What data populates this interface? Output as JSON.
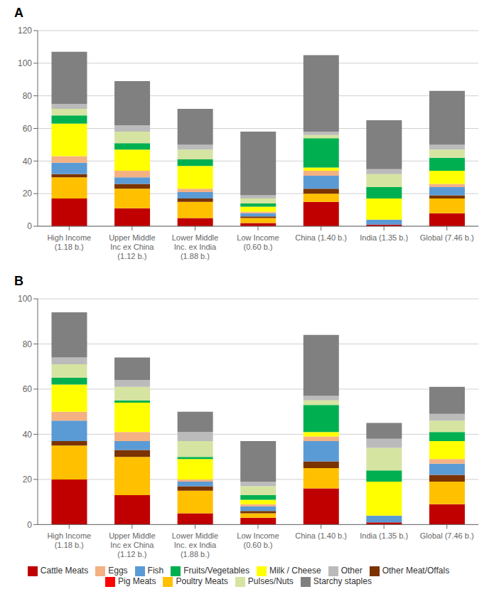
{
  "chart_data": [
    {
      "type": "bar",
      "title": "A",
      "categories": [
        "High Income\n(1.18 b.)",
        "Upper Middle\nInc ex China\n(1.12 b.)",
        "Lower Middle\nInc. ex India\n(1.88 b.)",
        "Low Income\n(0.60 b.)",
        "China (1.40 b.)",
        "India (1.35 b.)",
        "Global (7.46 b.)"
      ],
      "series": [
        {
          "name": "Cattle Meats",
          "color": "#C00000",
          "values": [
            17,
            11,
            5,
            2,
            15,
            1,
            8
          ]
        },
        {
          "name": "Pig Meats",
          "color": "#FF0000",
          "values": [
            0,
            0,
            0,
            0,
            0,
            0,
            0
          ]
        },
        {
          "name": "Poultry Meats",
          "color": "#FFC000",
          "values": [
            13,
            12,
            10,
            3,
            5,
            0,
            9
          ]
        },
        {
          "name": "Other Meat/Offals",
          "color": "#7B3300",
          "values": [
            2,
            3,
            2,
            1,
            3,
            0,
            2
          ]
        },
        {
          "name": "Fish",
          "color": "#5B9BD5",
          "values": [
            7,
            4,
            4,
            2,
            8,
            3,
            5
          ]
        },
        {
          "name": "Eggs",
          "color": "#F4B183",
          "values": [
            4,
            4,
            2,
            1,
            3,
            0,
            2
          ]
        },
        {
          "name": "Milk / Cheese",
          "color": "#FFFF00",
          "values": [
            20,
            13,
            14,
            3,
            2,
            13,
            8
          ]
        },
        {
          "name": "Fruits/Vegetables",
          "color": "#00B050",
          "values": [
            5,
            4,
            4,
            2,
            18,
            7,
            8
          ]
        },
        {
          "name": "Pulses/Nuts",
          "color": "#D6E4A1",
          "values": [
            4,
            7,
            6,
            3,
            2,
            8,
            5
          ]
        },
        {
          "name": "Other",
          "color": "#BBBBBB",
          "values": [
            3,
            4,
            3,
            2,
            2,
            3,
            3
          ]
        },
        {
          "name": "Starchy staples",
          "color": "#808080",
          "values": [
            32,
            27,
            22,
            39,
            47,
            30,
            33
          ]
        }
      ],
      "stacked": true,
      "ylim": [
        0,
        120
      ],
      "yticks": [
        0,
        20,
        40,
        60,
        80,
        100,
        120
      ],
      "grid": true
    },
    {
      "type": "bar",
      "title": "B",
      "categories": [
        "High Income\n(1.18 b.)",
        "Upper Middle\nInc ex China\n(1.12 b.)",
        "Lower Middle\nInc. ex India\n(1.88 b.)",
        "Low Income\n(0.60 b.)",
        "China (1.40 b.)",
        "India (1.35 b.)",
        "Global (7.46 b.)"
      ],
      "series": [
        {
          "name": "Cattle Meats",
          "color": "#C00000",
          "values": [
            20,
            13,
            5,
            3,
            16,
            1,
            9
          ]
        },
        {
          "name": "Pig Meats",
          "color": "#FF0000",
          "values": [
            0,
            0,
            0,
            0,
            0,
            0,
            0
          ]
        },
        {
          "name": "Poultry Meats",
          "color": "#FFC000",
          "values": [
            15,
            17,
            10,
            2,
            9,
            0,
            10
          ]
        },
        {
          "name": "Other Meat/Offals",
          "color": "#7B3300",
          "values": [
            2,
            3,
            2,
            1,
            3,
            0,
            3
          ]
        },
        {
          "name": "Fish",
          "color": "#5B9BD5",
          "values": [
            9,
            4,
            2,
            2,
            9,
            3,
            5
          ]
        },
        {
          "name": "Eggs",
          "color": "#F4B183",
          "values": [
            4,
            4,
            1,
            1,
            2,
            0,
            2
          ]
        },
        {
          "name": "Milk / Cheese",
          "color": "#FFFF00",
          "values": [
            12,
            13,
            9,
            2,
            2,
            15,
            8
          ]
        },
        {
          "name": "Fruits/Vegetables",
          "color": "#00B050",
          "values": [
            3,
            1,
            1,
            2,
            12,
            5,
            4
          ]
        },
        {
          "name": "Pulses/Nuts",
          "color": "#D6E4A1",
          "values": [
            6,
            6,
            7,
            4,
            2,
            10,
            5
          ]
        },
        {
          "name": "Other",
          "color": "#BBBBBB",
          "values": [
            3,
            3,
            4,
            2,
            2,
            4,
            3
          ]
        },
        {
          "name": "Starchy staples",
          "color": "#808080",
          "values": [
            20,
            10,
            9,
            18,
            27,
            7,
            12
          ]
        }
      ],
      "stacked": true,
      "ylim": [
        0,
        100
      ],
      "yticks": [
        0,
        20,
        40,
        60,
        80,
        100
      ],
      "grid": true,
      "legend": "bottom"
    }
  ]
}
